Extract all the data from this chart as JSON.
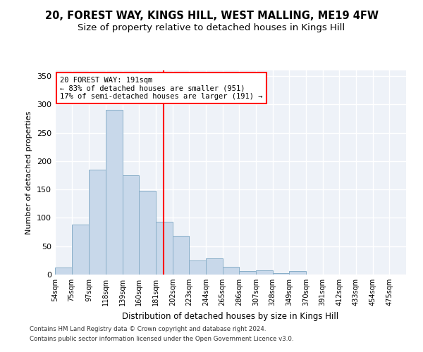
{
  "title1": "20, FOREST WAY, KINGS HILL, WEST MALLING, ME19 4FW",
  "title2": "Size of property relative to detached houses in Kings Hill",
  "xlabel": "Distribution of detached houses by size in Kings Hill",
  "ylabel": "Number of detached properties",
  "bar_color": "#c8d8ea",
  "bar_edge_color": "#88aec8",
  "categories": [
    "54sqm",
    "75sqm",
    "97sqm",
    "118sqm",
    "139sqm",
    "160sqm",
    "181sqm",
    "202sqm",
    "223sqm",
    "244sqm",
    "265sqm",
    "286sqm",
    "307sqm",
    "328sqm",
    "349sqm",
    "370sqm",
    "391sqm",
    "412sqm",
    "433sqm",
    "454sqm",
    "475sqm"
  ],
  "values": [
    13,
    88,
    185,
    290,
    175,
    148,
    93,
    68,
    25,
    29,
    14,
    6,
    8,
    3,
    6,
    0,
    0,
    0,
    0,
    0,
    0
  ],
  "ylim": [
    0,
    360
  ],
  "yticks": [
    0,
    50,
    100,
    150,
    200,
    250,
    300,
    350
  ],
  "bin_edges": [
    54,
    75,
    97,
    118,
    139,
    160,
    181,
    202,
    223,
    244,
    265,
    286,
    307,
    328,
    349,
    370,
    391,
    412,
    433,
    454,
    475,
    496
  ],
  "annotation_title": "20 FOREST WAY: 191sqm",
  "annotation_line1": "← 83% of detached houses are smaller (951)",
  "annotation_line2": "17% of semi-detached houses are larger (191) →",
  "annotation_box_color": "white",
  "annotation_box_edge_color": "red",
  "vline_color": "red",
  "vline_x": 191,
  "footer1": "Contains HM Land Registry data © Crown copyright and database right 2024.",
  "footer2": "Contains public sector information licensed under the Open Government Licence v3.0.",
  "bg_color": "#eef2f8",
  "grid_color": "white",
  "title1_fontsize": 10.5,
  "title2_fontsize": 9.5
}
